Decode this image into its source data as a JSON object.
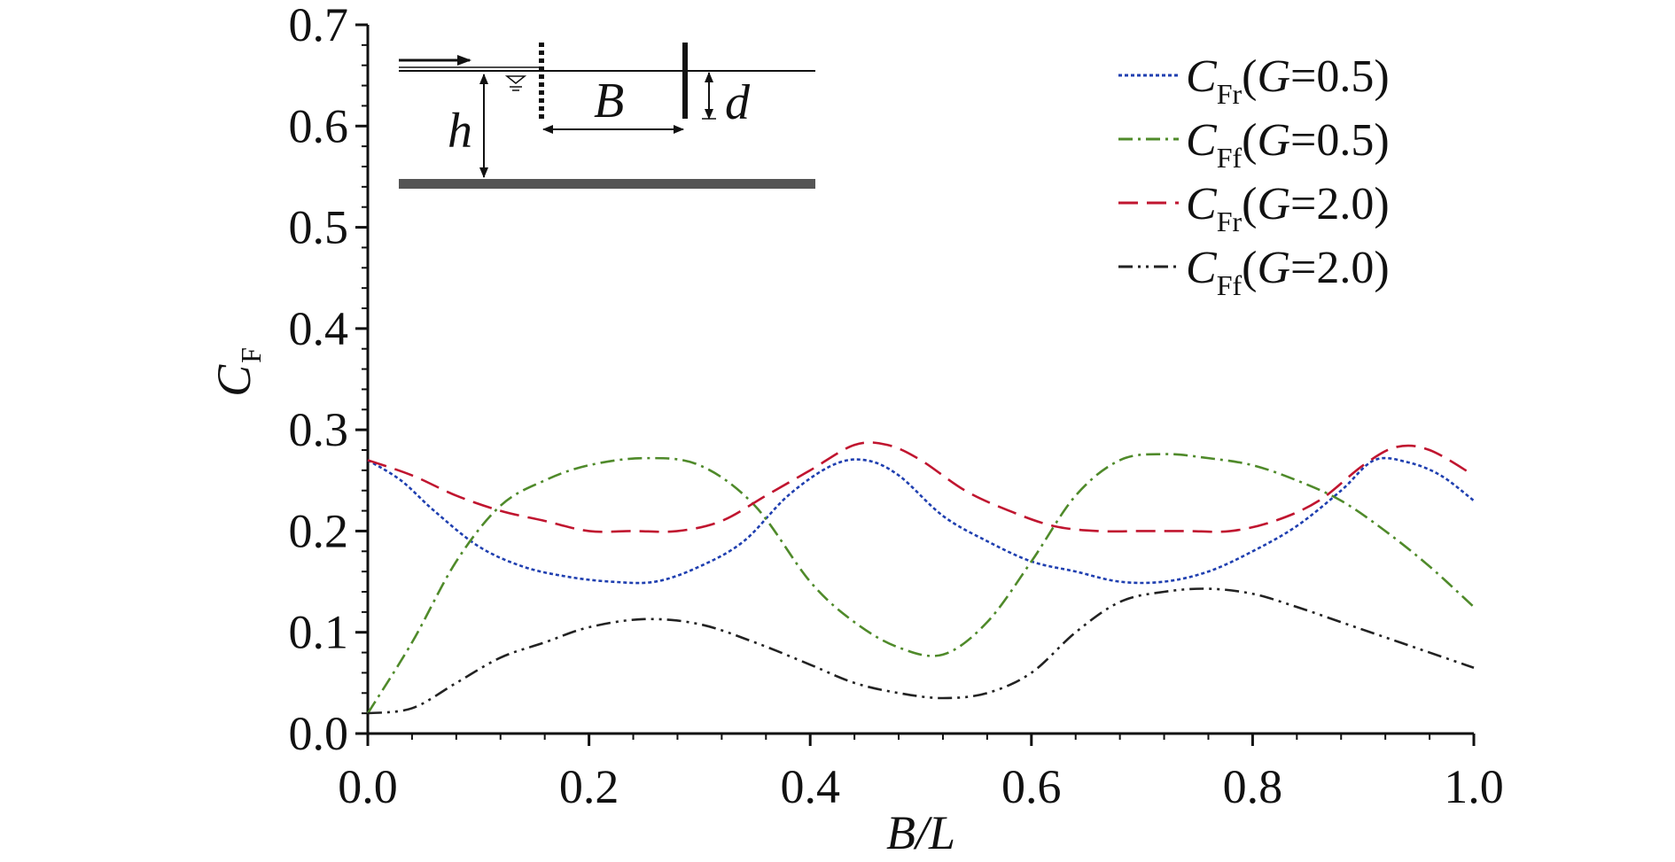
{
  "chart_data": {
    "type": "line",
    "xlabel": "B/L",
    "ylabel": "C",
    "ylabel_sub": "F",
    "xlim": [
      0.0,
      1.0
    ],
    "ylim": [
      0.0,
      0.7
    ],
    "x_ticks": [
      "0.0",
      "0.2",
      "0.4",
      "0.6",
      "0.8",
      "1.0"
    ],
    "y_ticks": [
      "0.0",
      "0.1",
      "0.2",
      "0.3",
      "0.4",
      "0.5",
      "0.6",
      "0.7"
    ],
    "legend_position": "top-right",
    "grid": false,
    "series": [
      {
        "name": "C_Fr(G=0.5)",
        "legend": {
          "sym": "C",
          "sub1": "F",
          "sub2": "r",
          "paren_var": "G",
          "paren_val": "=0.5)"
        },
        "color": "#1f3fb0",
        "style": "dotted",
        "x": [
          0.0,
          0.03,
          0.06,
          0.1,
          0.14,
          0.18,
          0.22,
          0.26,
          0.3,
          0.34,
          0.38,
          0.42,
          0.45,
          0.48,
          0.52,
          0.56,
          0.6,
          0.64,
          0.68,
          0.72,
          0.76,
          0.8,
          0.84,
          0.88,
          0.91,
          0.94,
          0.97,
          1.0
        ],
        "y": [
          0.27,
          0.25,
          0.22,
          0.185,
          0.165,
          0.155,
          0.15,
          0.15,
          0.165,
          0.19,
          0.235,
          0.265,
          0.27,
          0.255,
          0.215,
          0.19,
          0.17,
          0.16,
          0.15,
          0.15,
          0.16,
          0.18,
          0.205,
          0.24,
          0.27,
          0.268,
          0.255,
          0.23
        ]
      },
      {
        "name": "C_Ff(G=0.5)",
        "legend": {
          "sym": "C",
          "sub1": "F",
          "sub2": "f",
          "paren_var": "G",
          "paren_val": "=0.5)"
        },
        "color": "#4f8a2a",
        "style": "dashdot",
        "x": [
          0.0,
          0.04,
          0.08,
          0.12,
          0.16,
          0.2,
          0.25,
          0.3,
          0.35,
          0.4,
          0.44,
          0.48,
          0.52,
          0.56,
          0.6,
          0.64,
          0.68,
          0.72,
          0.76,
          0.8,
          0.84,
          0.88,
          0.92,
          0.96,
          1.0
        ],
        "y": [
          0.02,
          0.09,
          0.17,
          0.225,
          0.25,
          0.265,
          0.272,
          0.265,
          0.225,
          0.15,
          0.11,
          0.085,
          0.078,
          0.11,
          0.17,
          0.235,
          0.27,
          0.276,
          0.272,
          0.265,
          0.25,
          0.23,
          0.2,
          0.165,
          0.125
        ]
      },
      {
        "name": "C_Fr(G=2.0)",
        "legend": {
          "sym": "C",
          "sub1": "F",
          "sub2": "r",
          "paren_var": "G",
          "paren_val": "=2.0)"
        },
        "color": "#c0152f",
        "style": "dashed",
        "x": [
          0.0,
          0.04,
          0.08,
          0.12,
          0.16,
          0.2,
          0.24,
          0.28,
          0.32,
          0.36,
          0.4,
          0.44,
          0.47,
          0.5,
          0.54,
          0.58,
          0.62,
          0.66,
          0.7,
          0.74,
          0.78,
          0.82,
          0.86,
          0.9,
          0.93,
          0.96,
          1.0
        ],
        "y": [
          0.27,
          0.255,
          0.235,
          0.22,
          0.21,
          0.2,
          0.2,
          0.2,
          0.21,
          0.235,
          0.26,
          0.285,
          0.285,
          0.27,
          0.24,
          0.22,
          0.205,
          0.2,
          0.2,
          0.2,
          0.2,
          0.21,
          0.23,
          0.265,
          0.283,
          0.28,
          0.255
        ]
      },
      {
        "name": "C_Ff(G=2.0)",
        "legend": {
          "sym": "C",
          "sub1": "F",
          "sub2": "f",
          "paren_var": "G",
          "paren_val": "=2.0)"
        },
        "color": "#222222",
        "style": "dashdotdot",
        "x": [
          0.0,
          0.04,
          0.08,
          0.12,
          0.16,
          0.2,
          0.25,
          0.3,
          0.35,
          0.4,
          0.44,
          0.48,
          0.52,
          0.56,
          0.6,
          0.64,
          0.68,
          0.72,
          0.76,
          0.8,
          0.84,
          0.88,
          0.92,
          0.96,
          1.0
        ],
        "y": [
          0.02,
          0.025,
          0.05,
          0.075,
          0.09,
          0.105,
          0.113,
          0.108,
          0.09,
          0.068,
          0.05,
          0.04,
          0.035,
          0.04,
          0.06,
          0.1,
          0.13,
          0.14,
          0.143,
          0.138,
          0.125,
          0.11,
          0.095,
          0.08,
          0.065
        ]
      }
    ]
  },
  "inset": {
    "labels": {
      "h": "h",
      "B": "B",
      "d": "d"
    }
  }
}
